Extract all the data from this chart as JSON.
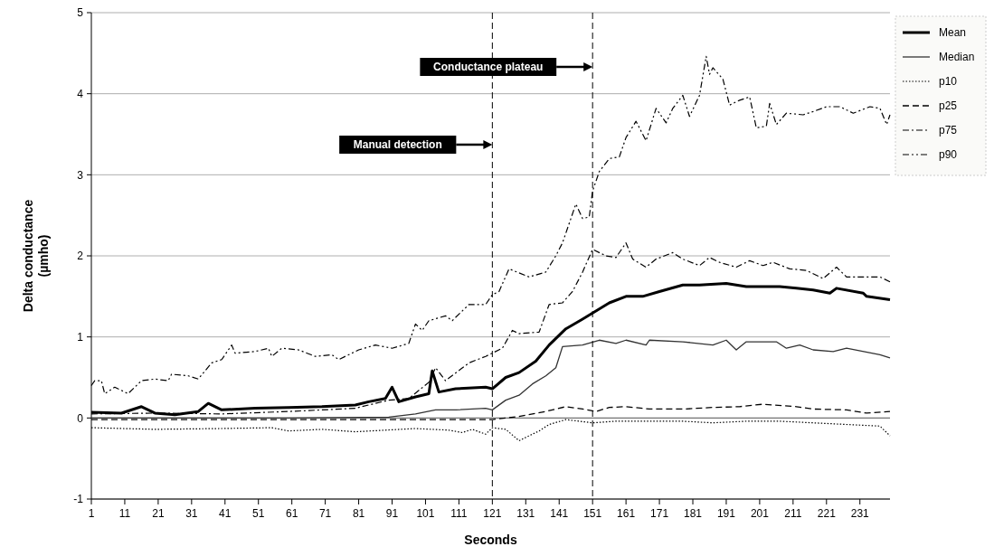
{
  "chart_data": {
    "type": "line",
    "xlabel": "Seconds",
    "ylabel": "Delta conductance (µmho)",
    "xlim": [
      1,
      240
    ],
    "xticks": [
      1,
      11,
      21,
      31,
      41,
      51,
      61,
      71,
      81,
      91,
      101,
      111,
      121,
      131,
      141,
      151,
      161,
      171,
      181,
      191,
      201,
      211,
      221,
      231
    ],
    "ylim": [
      -1,
      5
    ],
    "yticks": [
      -1,
      0,
      1,
      2,
      3,
      4,
      5
    ],
    "grid": "y",
    "legend": "top right",
    "series": [
      {
        "name": "Mean",
        "color": "#000000",
        "line_style": "solid",
        "x": [
          1,
          10,
          16,
          20,
          26,
          33,
          36,
          40,
          50,
          60,
          70,
          80,
          84,
          89,
          91,
          93,
          98,
          102,
          103,
          105,
          110,
          119,
          121,
          125,
          129,
          134,
          138,
          143,
          148,
          152,
          156,
          161,
          166,
          171,
          178,
          183,
          191,
          197,
          202,
          207,
          212,
          217,
          222,
          224,
          232,
          233,
          240
        ],
        "values": [
          0.07,
          0.06,
          0.14,
          0.06,
          0.04,
          0.08,
          0.18,
          0.1,
          0.12,
          0.13,
          0.14,
          0.16,
          0.2,
          0.24,
          0.38,
          0.2,
          0.26,
          0.3,
          0.58,
          0.32,
          0.36,
          0.38,
          0.36,
          0.5,
          0.56,
          0.7,
          0.9,
          1.1,
          1.22,
          1.32,
          1.42,
          1.5,
          1.5,
          1.56,
          1.64,
          1.64,
          1.66,
          1.62,
          1.62,
          1.62,
          1.6,
          1.58,
          1.54,
          1.6,
          1.54,
          1.5,
          1.46
        ]
      },
      {
        "name": "Median",
        "color": "#333333",
        "line_style": "solid",
        "x": [
          1,
          30,
          60,
          90,
          98,
          104,
          110,
          119,
          121,
          125,
          129,
          133,
          137,
          140,
          142,
          148,
          153,
          158,
          161,
          167,
          168,
          178,
          187,
          191,
          194,
          197,
          206,
          209,
          213,
          217,
          223,
          227,
          237,
          240
        ],
        "values": [
          0,
          0,
          0,
          0.01,
          0.05,
          0.1,
          0.1,
          0.12,
          0.1,
          0.22,
          0.28,
          0.42,
          0.52,
          0.62,
          0.88,
          0.9,
          0.96,
          0.92,
          0.96,
          0.9,
          0.96,
          0.94,
          0.9,
          0.96,
          0.84,
          0.94,
          0.94,
          0.86,
          0.9,
          0.84,
          0.82,
          0.86,
          0.78,
          0.74
        ]
      },
      {
        "name": "p10",
        "color": "#000000",
        "line_style": "dotted",
        "x": [
          1,
          20,
          40,
          55,
          60,
          70,
          80,
          98,
          108,
          112,
          115,
          119,
          121,
          125,
          129,
          135,
          138,
          143,
          151,
          158,
          168,
          178,
          187,
          197,
          207,
          217,
          227,
          237,
          240
        ],
        "values": [
          -0.12,
          -0.14,
          -0.13,
          -0.12,
          -0.16,
          -0.14,
          -0.17,
          -0.13,
          -0.15,
          -0.18,
          -0.14,
          -0.2,
          -0.12,
          -0.14,
          -0.28,
          -0.16,
          -0.08,
          -0.02,
          -0.06,
          -0.04,
          -0.04,
          -0.04,
          -0.06,
          -0.04,
          -0.04,
          -0.06,
          -0.08,
          -0.1,
          -0.22
        ]
      },
      {
        "name": "p25",
        "color": "#000000",
        "line_style": "dashed",
        "x": [
          1,
          40,
          80,
          121,
          129,
          137,
          143,
          148,
          152,
          156,
          161,
          168,
          178,
          187,
          195,
          202,
          212,
          217,
          227,
          233,
          240
        ],
        "values": [
          -0.02,
          -0.02,
          -0.02,
          -0.02,
          0.02,
          0.08,
          0.14,
          0.11,
          0.08,
          0.13,
          0.14,
          0.11,
          0.11,
          0.13,
          0.14,
          0.17,
          0.14,
          0.11,
          0.1,
          0.06,
          0.08
        ]
      },
      {
        "name": "p75",
        "color": "#000000",
        "line_style": "dashdot",
        "x": [
          1,
          20,
          40,
          60,
          80,
          90,
          96,
          102,
          104,
          107,
          114,
          119,
          121,
          124,
          127,
          129,
          135,
          138,
          142,
          145,
          148,
          151,
          155,
          158,
          161,
          163,
          167,
          170,
          175,
          178,
          183,
          186,
          189,
          194,
          198,
          202,
          205,
          210,
          215,
          220,
          224,
          227,
          232,
          237,
          240
        ],
        "values": [
          0.05,
          0.06,
          0.05,
          0.08,
          0.12,
          0.22,
          0.24,
          0.44,
          0.62,
          0.46,
          0.68,
          0.76,
          0.8,
          0.86,
          1.08,
          1.04,
          1.06,
          1.4,
          1.42,
          1.56,
          1.8,
          2.08,
          2,
          1.98,
          2.16,
          1.96,
          1.86,
          1.96,
          2.04,
          1.96,
          1.88,
          1.98,
          1.92,
          1.86,
          1.94,
          1.88,
          1.92,
          1.84,
          1.82,
          1.72,
          1.86,
          1.74,
          1.74,
          1.74,
          1.68
        ]
      },
      {
        "name": "p90",
        "color": "#000000",
        "line_style": "dashdotdot",
        "x": [
          1,
          2,
          4,
          5,
          8,
          12,
          16,
          20,
          24,
          25,
          30,
          33,
          37,
          40,
          43,
          44,
          50,
          54,
          55,
          58,
          63,
          68,
          73,
          75,
          81,
          86,
          91,
          96,
          98,
          100,
          102,
          107,
          109,
          114,
          119,
          121,
          123,
          126,
          132,
          137,
          140,
          142,
          143,
          146,
          148,
          150,
          151,
          153,
          156,
          159,
          161,
          164,
          167,
          170,
          173,
          175,
          178,
          180,
          183,
          185,
          186,
          187,
          190,
          192,
          195,
          198,
          200,
          203,
          204,
          206,
          209,
          214,
          217,
          221,
          225,
          229,
          234,
          237,
          239,
          240
        ],
        "values": [
          0.4,
          0.46,
          0.46,
          0.3,
          0.38,
          0.3,
          0.46,
          0.48,
          0.46,
          0.54,
          0.52,
          0.48,
          0.68,
          0.72,
          0.9,
          0.8,
          0.82,
          0.86,
          0.76,
          0.86,
          0.84,
          0.76,
          0.78,
          0.72,
          0.84,
          0.9,
          0.86,
          0.92,
          1.16,
          1.08,
          1.2,
          1.26,
          1.2,
          1.4,
          1.4,
          1.52,
          1.56,
          1.84,
          1.74,
          1.8,
          2,
          2.16,
          2.28,
          2.64,
          2.46,
          2.48,
          2.8,
          3.04,
          3.2,
          3.22,
          3.46,
          3.66,
          3.42,
          3.82,
          3.64,
          3.82,
          3.98,
          3.72,
          3.98,
          4.46,
          4.24,
          4.32,
          4.18,
          3.86,
          3.92,
          3.96,
          3.58,
          3.6,
          3.88,
          3.62,
          3.76,
          3.74,
          3.78,
          3.84,
          3.84,
          3.76,
          3.84,
          3.82,
          3.62,
          3.74
        ]
      }
    ],
    "ref_lines": [
      {
        "axis": "x",
        "value": 121,
        "label": "Manual detection",
        "line_style": "dashed",
        "color": "#000000"
      },
      {
        "axis": "x",
        "value": 151,
        "label": "Conductance plateau",
        "line_style": "dashed",
        "color": "#000000"
      }
    ]
  }
}
